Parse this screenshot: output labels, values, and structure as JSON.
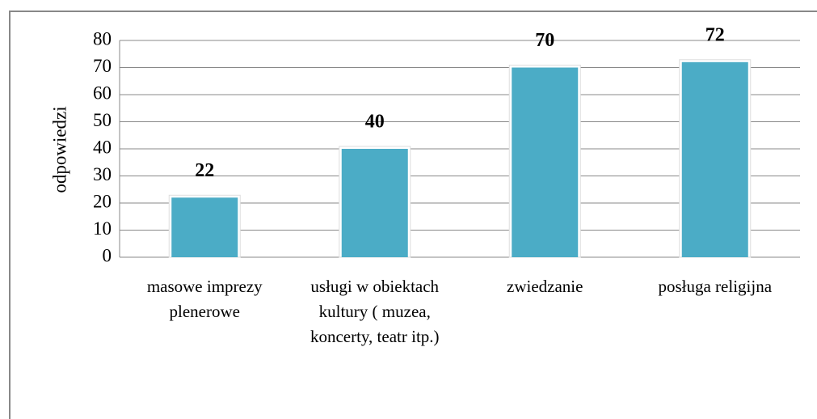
{
  "chart_data": {
    "type": "bar",
    "y_label": "odpowiedzi",
    "categories": [
      "masowe imprezy plenerowe",
      "usługi w obiektach kultury  ( muzea, koncerty, teatr itp.)",
      "zwiedzanie",
      "posługa religijna"
    ],
    "values": [
      22,
      40,
      70,
      72
    ],
    "color": "#4bacc6",
    "ylim": [
      0,
      80
    ],
    "yticks": [
      0,
      10,
      20,
      30,
      40,
      50,
      60,
      70,
      80
    ],
    "grid": true
  }
}
